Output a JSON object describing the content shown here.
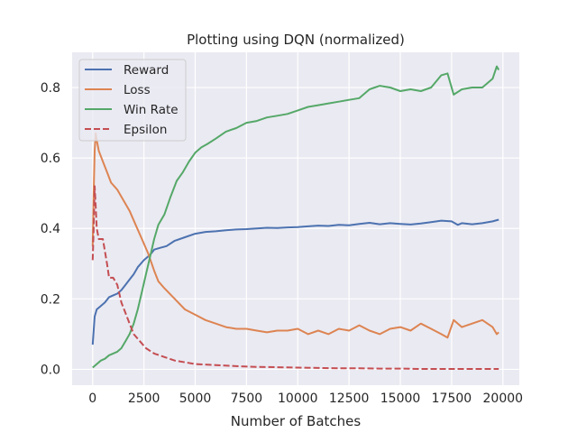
{
  "chart_data": {
    "type": "line",
    "title": "Plotting using DQN (normalized)",
    "xlabel": "Number of Batches",
    "ylabel": "",
    "xlim": [
      -1000,
      20800
    ],
    "ylim": [
      -0.045,
      0.9
    ],
    "xticks": [
      0,
      2500,
      5000,
      7500,
      10000,
      12500,
      15000,
      17500,
      20000
    ],
    "yticks": [
      0.0,
      0.2,
      0.4,
      0.6,
      0.8
    ],
    "ytick_labels": [
      "0.0",
      "0.2",
      "0.4",
      "0.6",
      "0.8"
    ],
    "grid": true,
    "legend_position": "top-left",
    "series": [
      {
        "name": "Reward",
        "color": "#4C72B0",
        "dash": "solid",
        "points": [
          [
            0,
            0.07
          ],
          [
            100,
            0.15
          ],
          [
            200,
            0.17
          ],
          [
            400,
            0.18
          ],
          [
            600,
            0.19
          ],
          [
            800,
            0.205
          ],
          [
            1000,
            0.21
          ],
          [
            1200,
            0.215
          ],
          [
            1400,
            0.225
          ],
          [
            1600,
            0.24
          ],
          [
            1800,
            0.255
          ],
          [
            2000,
            0.27
          ],
          [
            2200,
            0.29
          ],
          [
            2500,
            0.31
          ],
          [
            2800,
            0.325
          ],
          [
            3000,
            0.34
          ],
          [
            3300,
            0.345
          ],
          [
            3600,
            0.35
          ],
          [
            4000,
            0.365
          ],
          [
            4500,
            0.375
          ],
          [
            5000,
            0.385
          ],
          [
            5500,
            0.39
          ],
          [
            6000,
            0.392
          ],
          [
            6500,
            0.395
          ],
          [
            7000,
            0.397
          ],
          [
            7500,
            0.398
          ],
          [
            8000,
            0.4
          ],
          [
            8500,
            0.402
          ],
          [
            9000,
            0.401
          ],
          [
            9500,
            0.403
          ],
          [
            10000,
            0.404
          ],
          [
            10500,
            0.406
          ],
          [
            11000,
            0.408
          ],
          [
            11500,
            0.407
          ],
          [
            12000,
            0.41
          ],
          [
            12500,
            0.409
          ],
          [
            13000,
            0.413
          ],
          [
            13500,
            0.416
          ],
          [
            14000,
            0.412
          ],
          [
            14500,
            0.415
          ],
          [
            15000,
            0.413
          ],
          [
            15500,
            0.411
          ],
          [
            16000,
            0.414
          ],
          [
            16500,
            0.418
          ],
          [
            17000,
            0.422
          ],
          [
            17500,
            0.42
          ],
          [
            17800,
            0.41
          ],
          [
            18000,
            0.415
          ],
          [
            18500,
            0.412
          ],
          [
            19000,
            0.415
          ],
          [
            19500,
            0.42
          ],
          [
            19800,
            0.425
          ]
        ]
      },
      {
        "name": "Loss",
        "color": "#DD8452",
        "dash": "solid",
        "points": [
          [
            0,
            0.35
          ],
          [
            50,
            0.5
          ],
          [
            100,
            0.62
          ],
          [
            150,
            0.67
          ],
          [
            200,
            0.65
          ],
          [
            300,
            0.62
          ],
          [
            500,
            0.59
          ],
          [
            700,
            0.56
          ],
          [
            900,
            0.53
          ],
          [
            1200,
            0.51
          ],
          [
            1500,
            0.48
          ],
          [
            1800,
            0.45
          ],
          [
            2100,
            0.41
          ],
          [
            2400,
            0.37
          ],
          [
            2700,
            0.33
          ],
          [
            3000,
            0.28
          ],
          [
            3200,
            0.25
          ],
          [
            3500,
            0.23
          ],
          [
            4000,
            0.2
          ],
          [
            4500,
            0.17
          ],
          [
            5000,
            0.155
          ],
          [
            5500,
            0.14
          ],
          [
            6000,
            0.13
          ],
          [
            6500,
            0.12
          ],
          [
            7000,
            0.115
          ],
          [
            7500,
            0.115
          ],
          [
            8000,
            0.11
          ],
          [
            8500,
            0.105
          ],
          [
            9000,
            0.11
          ],
          [
            9500,
            0.11
          ],
          [
            10000,
            0.115
          ],
          [
            10500,
            0.1
          ],
          [
            11000,
            0.11
          ],
          [
            11500,
            0.1
          ],
          [
            12000,
            0.115
          ],
          [
            12500,
            0.11
          ],
          [
            13000,
            0.125
          ],
          [
            13500,
            0.11
          ],
          [
            14000,
            0.1
          ],
          [
            14500,
            0.115
          ],
          [
            15000,
            0.12
          ],
          [
            15500,
            0.11
          ],
          [
            16000,
            0.13
          ],
          [
            16500,
            0.115
          ],
          [
            17000,
            0.1
          ],
          [
            17300,
            0.09
          ],
          [
            17600,
            0.14
          ],
          [
            18000,
            0.12
          ],
          [
            18500,
            0.13
          ],
          [
            19000,
            0.14
          ],
          [
            19500,
            0.12
          ],
          [
            19700,
            0.1
          ],
          [
            19800,
            0.105
          ]
        ]
      },
      {
        "name": "Win Rate",
        "color": "#55A868",
        "dash": "solid",
        "points": [
          [
            0,
            0.005
          ],
          [
            200,
            0.015
          ],
          [
            400,
            0.025
          ],
          [
            600,
            0.03
          ],
          [
            800,
            0.04
          ],
          [
            1000,
            0.045
          ],
          [
            1200,
            0.05
          ],
          [
            1400,
            0.06
          ],
          [
            1600,
            0.08
          ],
          [
            1800,
            0.1
          ],
          [
            2000,
            0.13
          ],
          [
            2200,
            0.17
          ],
          [
            2400,
            0.22
          ],
          [
            2600,
            0.27
          ],
          [
            2800,
            0.32
          ],
          [
            3000,
            0.37
          ],
          [
            3200,
            0.41
          ],
          [
            3500,
            0.44
          ],
          [
            3800,
            0.49
          ],
          [
            4100,
            0.535
          ],
          [
            4400,
            0.56
          ],
          [
            4700,
            0.59
          ],
          [
            5000,
            0.615
          ],
          [
            5300,
            0.63
          ],
          [
            5600,
            0.64
          ],
          [
            6000,
            0.655
          ],
          [
            6500,
            0.675
          ],
          [
            7000,
            0.685
          ],
          [
            7500,
            0.7
          ],
          [
            8000,
            0.705
          ],
          [
            8500,
            0.715
          ],
          [
            9000,
            0.72
          ],
          [
            9500,
            0.725
          ],
          [
            10000,
            0.735
          ],
          [
            10500,
            0.745
          ],
          [
            11000,
            0.75
          ],
          [
            11500,
            0.755
          ],
          [
            12000,
            0.76
          ],
          [
            12500,
            0.765
          ],
          [
            13000,
            0.77
          ],
          [
            13500,
            0.795
          ],
          [
            14000,
            0.805
          ],
          [
            14500,
            0.8
          ],
          [
            15000,
            0.79
          ],
          [
            15500,
            0.795
          ],
          [
            16000,
            0.79
          ],
          [
            16500,
            0.8
          ],
          [
            17000,
            0.835
          ],
          [
            17300,
            0.84
          ],
          [
            17600,
            0.78
          ],
          [
            18000,
            0.795
          ],
          [
            18500,
            0.8
          ],
          [
            19000,
            0.8
          ],
          [
            19500,
            0.825
          ],
          [
            19700,
            0.86
          ],
          [
            19800,
            0.85
          ]
        ]
      },
      {
        "name": "Epsilon",
        "color": "#C44E52",
        "dash": "dashed",
        "points": [
          [
            0,
            0.31
          ],
          [
            50,
            0.4
          ],
          [
            100,
            0.52
          ],
          [
            150,
            0.46
          ],
          [
            200,
            0.4
          ],
          [
            300,
            0.37
          ],
          [
            500,
            0.37
          ],
          [
            700,
            0.3
          ],
          [
            800,
            0.26
          ],
          [
            1000,
            0.26
          ],
          [
            1200,
            0.24
          ],
          [
            1400,
            0.19
          ],
          [
            1600,
            0.16
          ],
          [
            1800,
            0.13
          ],
          [
            2000,
            0.1
          ],
          [
            2300,
            0.08
          ],
          [
            2600,
            0.06
          ],
          [
            3000,
            0.045
          ],
          [
            3500,
            0.035
          ],
          [
            4000,
            0.025
          ],
          [
            4500,
            0.02
          ],
          [
            5000,
            0.015
          ],
          [
            6000,
            0.012
          ],
          [
            7000,
            0.009
          ],
          [
            8000,
            0.007
          ],
          [
            9000,
            0.006
          ],
          [
            10000,
            0.005
          ],
          [
            11000,
            0.004
          ],
          [
            12000,
            0.003
          ],
          [
            13000,
            0.003
          ],
          [
            14000,
            0.002
          ],
          [
            15000,
            0.002
          ],
          [
            16000,
            0.001
          ],
          [
            17000,
            0.001
          ],
          [
            18000,
            0.001
          ],
          [
            19000,
            0.001
          ],
          [
            19800,
            0.001
          ]
        ]
      }
    ]
  }
}
